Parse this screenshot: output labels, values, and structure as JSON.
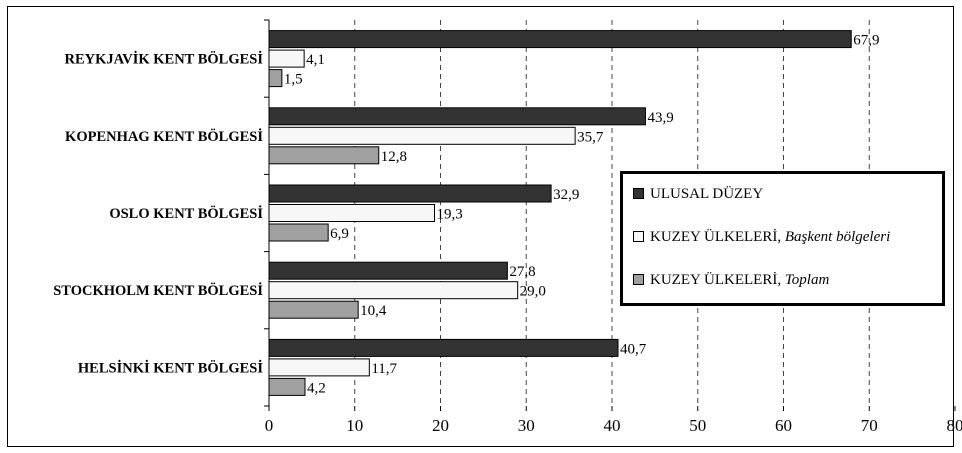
{
  "chart_data": {
    "type": "bar",
    "orientation": "horizontal",
    "categories": [
      "REYKJAVİK KENT BÖLGESİ",
      "KOPENHAG KENT BÖLGESİ",
      "OSLO KENT BÖLGESİ",
      "STOCKHOLM KENT BÖLGESİ",
      "HELSİNKİ KENT BÖLGESİ"
    ],
    "series": [
      {
        "name": "ULUSAL DÜZEY",
        "name_main": "ULUSAL DÜZEY",
        "name_italic": "",
        "color": "#333333",
        "values": [
          67.9,
          43.9,
          32.9,
          27.8,
          40.7
        ],
        "labels": [
          "67,9",
          "43,9",
          "32,9",
          "27,8",
          "40,7"
        ]
      },
      {
        "name": "KUZEY ÜLKELERİ, Başkent bölgeleri",
        "name_main": "KUZEY ÜLKELERİ, ",
        "name_italic": "Başkent bölgeleri",
        "color": "#f7f7f7",
        "values": [
          4.1,
          35.7,
          19.3,
          29.0,
          11.7
        ],
        "labels": [
          "4,1",
          "35,7",
          "19,3",
          "29,0",
          "11,7"
        ]
      },
      {
        "name": "KUZEY ÜLKELERİ, Toplam",
        "name_main": "KUZEY ÜLKELERİ, ",
        "name_italic": "Toplam",
        "color": "#a0a0a0",
        "values": [
          1.5,
          12.8,
          6.9,
          10.4,
          4.2
        ],
        "labels": [
          "1,5",
          "12,8",
          "6,9",
          "10,4",
          "4,2"
        ]
      }
    ],
    "xlim": [
      0,
      80
    ],
    "x_ticks": [
      "0",
      "10",
      "20",
      "30",
      "40",
      "50",
      "60",
      "70",
      "80"
    ],
    "grid": "vertical dashed",
    "legend_position": "right-middle"
  }
}
